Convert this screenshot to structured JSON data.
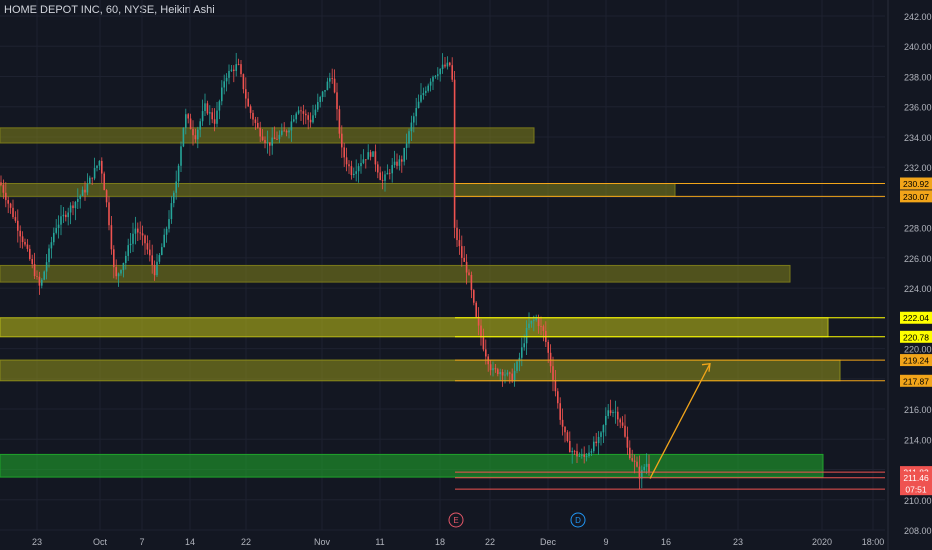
{
  "chart_data": {
    "type": "candlestick",
    "title": "HOME DEPOT INC, 60, NYSE, Heikin Ashi",
    "ylim": [
      208,
      242
    ],
    "y_ticks": [
      208,
      210,
      212,
      214,
      216,
      218,
      220,
      222,
      224,
      226,
      228,
      230,
      232,
      234,
      236,
      238,
      240,
      242
    ],
    "x_ticks": [
      "23",
      "Oct",
      "7",
      "14",
      "22",
      "Nov",
      "11",
      "18",
      "22",
      "Dec",
      "9",
      "16",
      "23",
      "2020",
      "18:00"
    ],
    "earnings_marker": "E",
    "dividend_marker": "D",
    "zones": [
      {
        "low": 233.6,
        "high": 234.6,
        "color": "#7a7a1a"
      },
      {
        "low": 230.07,
        "high": 230.92,
        "color": "#7a7a1a"
      },
      {
        "low": 224.4,
        "high": 225.5,
        "color": "#7a7a1a"
      },
      {
        "low": 220.78,
        "high": 222.04,
        "color": "#b5b518"
      },
      {
        "low": 217.87,
        "high": 219.24,
        "color": "#8a8a1a"
      },
      {
        "low": 211.5,
        "high": 213.0,
        "color": "#1fa32b"
      }
    ],
    "price_labels": [
      {
        "text": "230.92",
        "value": 230.92,
        "bg": "#f2a51a"
      },
      {
        "text": "230.07",
        "value": 230.07,
        "bg": "#f2a51a"
      },
      {
        "text": "222.04",
        "value": 222.04,
        "bg": "#ffff00"
      },
      {
        "text": "220.78",
        "value": 220.78,
        "bg": "#ffff00"
      },
      {
        "text": "219.24",
        "value": 219.24,
        "bg": "#f2a51a"
      },
      {
        "text": "217.87",
        "value": 217.87,
        "bg": "#f2a51a"
      },
      {
        "text": "211.83",
        "value": 211.83,
        "bg": "#ef5350"
      },
      {
        "text": "211.46",
        "value": 211.46,
        "bg": "#ef5350"
      },
      {
        "text": "07:51",
        "value": 210.7,
        "bg": "#ef5350"
      }
    ],
    "projection_arrow": {
      "from": 211.4,
      "to": 219.0
    },
    "price_path": [
      [
        0,
        231
      ],
      [
        12,
        229
      ],
      [
        25,
        226.8
      ],
      [
        40,
        224
      ],
      [
        55,
        228
      ],
      [
        70,
        229.3
      ],
      [
        85,
        230.5
      ],
      [
        100,
        232.5
      ],
      [
        108,
        229
      ],
      [
        115,
        224.5
      ],
      [
        125,
        226
      ],
      [
        135,
        228
      ],
      [
        145,
        227
      ],
      [
        155,
        225
      ],
      [
        165,
        227.5
      ],
      [
        175,
        230.5
      ],
      [
        185,
        235.5
      ],
      [
        195,
        234
      ],
      [
        205,
        236
      ],
      [
        215,
        235
      ],
      [
        225,
        238
      ],
      [
        238,
        238.8
      ],
      [
        248,
        236
      ],
      [
        258,
        234.5
      ],
      [
        268,
        233.5
      ],
      [
        278,
        234
      ],
      [
        288,
        234.5
      ],
      [
        298,
        236
      ],
      [
        310,
        235
      ],
      [
        320,
        236.5
      ],
      [
        332,
        238.2
      ],
      [
        342,
        233
      ],
      [
        352,
        231.6
      ],
      [
        362,
        232.5
      ],
      [
        372,
        233
      ],
      [
        382,
        231
      ],
      [
        392,
        232
      ],
      [
        402,
        232.5
      ],
      [
        412,
        235
      ],
      [
        420,
        236.5
      ],
      [
        432,
        238
      ],
      [
        442,
        238.6
      ],
      [
        452,
        238.8
      ],
      [
        454,
        228
      ],
      [
        458,
        227
      ],
      [
        462,
        226
      ],
      [
        468,
        225
      ],
      [
        476,
        222
      ],
      [
        484,
        220
      ],
      [
        492,
        218.5
      ],
      [
        502,
        218.5
      ],
      [
        512,
        218
      ],
      [
        520,
        219.5
      ],
      [
        528,
        221.5
      ],
      [
        536,
        222
      ],
      [
        544,
        221
      ],
      [
        552,
        218.5
      ],
      [
        560,
        215.5
      ],
      [
        568,
        213.5
      ],
      [
        576,
        213
      ],
      [
        584,
        212.8
      ],
      [
        592,
        213.5
      ],
      [
        600,
        214
      ],
      [
        608,
        216
      ],
      [
        616,
        215.8
      ],
      [
        622,
        215
      ],
      [
        628,
        213.2
      ],
      [
        634,
        212.5
      ],
      [
        640,
        211.5
      ],
      [
        646,
        212.5
      ],
      [
        650,
        211.9
      ]
    ]
  }
}
